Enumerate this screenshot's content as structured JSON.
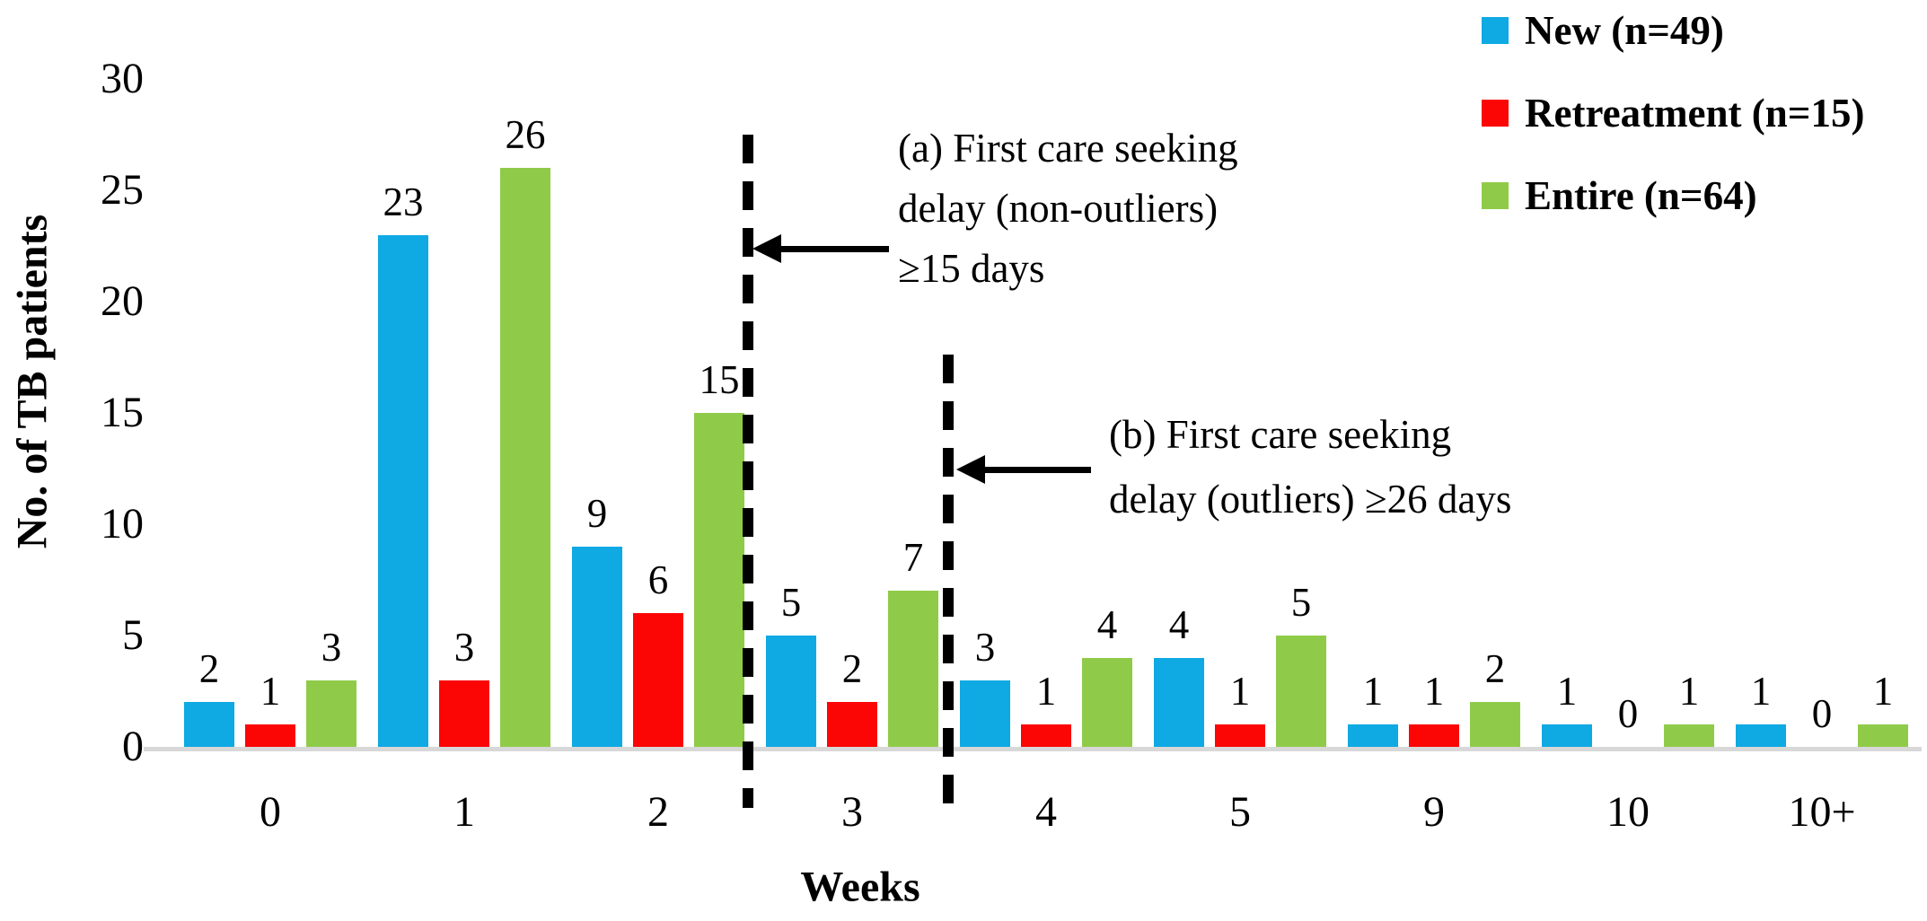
{
  "chart_data": {
    "type": "bar",
    "title": "",
    "xlabel": "Weeks",
    "ylabel": "No. of TB patients",
    "categories": [
      "0",
      "1",
      "2",
      "3",
      "4",
      "5",
      "9",
      "10",
      "10+"
    ],
    "series": [
      {
        "name": "New (n=49)",
        "color": "#0FA9E3",
        "values": [
          2,
          23,
          9,
          5,
          3,
          4,
          1,
          1,
          1
        ]
      },
      {
        "name": "Retreatment (n=15)",
        "color": "#FB0505",
        "values": [
          1,
          3,
          6,
          2,
          1,
          1,
          1,
          0,
          0
        ]
      },
      {
        "name": "Entire (n=64)",
        "color": "#8FCB49",
        "values": [
          3,
          26,
          15,
          7,
          4,
          5,
          2,
          1,
          1
        ]
      }
    ],
    "y_axis": {
      "min": 0,
      "max": 30,
      "step": 5,
      "ticks": [
        0,
        5,
        10,
        15,
        20,
        25,
        30
      ]
    },
    "grid": false,
    "legend_position": "top-right",
    "axis_line_color": "#D8D8D8",
    "annotations": [
      {
        "id": "a",
        "lines": [
          "(a) First care seeking",
          "delay (non-outliers)",
          "≥15 days"
        ]
      },
      {
        "id": "b",
        "lines": [
          "(b) First care seeking",
          "delay (outliers) ≥26 days"
        ]
      }
    ]
  }
}
